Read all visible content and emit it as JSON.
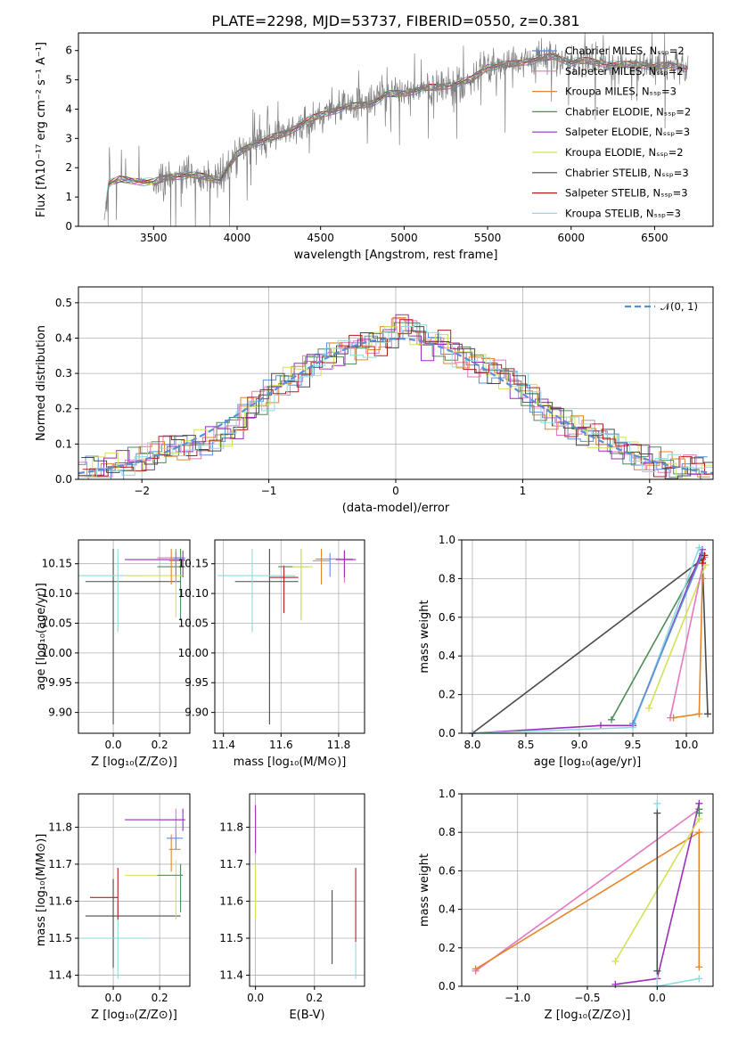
{
  "figure": {
    "title": "PLATE=2298, MJD=53737, FIBERID=0550, z=0.381"
  },
  "chart_data": [
    {
      "id": "spectrum",
      "type": "line",
      "xlabel": "wavelength [Angstrom, rest frame]",
      "ylabel": "Flux [fλ10⁻¹⁷ erg cm⁻² s⁻¹ A⁻¹]",
      "xlim": [
        3050,
        6850
      ],
      "ylim": [
        0,
        6.6
      ],
      "xticks": [
        3500,
        4000,
        4500,
        5000,
        5500,
        6000,
        6500
      ],
      "yticks": [
        0,
        1,
        2,
        3,
        4,
        5,
        6
      ],
      "grid": false,
      "legend_position": "top-right",
      "data_color": "#7f7f7f",
      "continuum": {
        "x": [
          3200,
          3230,
          3300,
          3400,
          3500,
          3600,
          3700,
          3800,
          3900,
          4000,
          4100,
          4200,
          4300,
          4400,
          4500,
          4600,
          4700,
          4800,
          4900,
          5000,
          5100,
          5200,
          5300,
          5400,
          5500,
          5600,
          5700,
          5800,
          5900,
          6000,
          6100,
          6200,
          6300,
          6400,
          6500,
          6600,
          6700
        ],
        "y": [
          0,
          1.45,
          1.6,
          1.55,
          1.5,
          1.7,
          1.75,
          1.7,
          1.6,
          2.45,
          2.85,
          3.0,
          3.2,
          3.55,
          3.8,
          4.0,
          4.1,
          4.2,
          4.5,
          4.55,
          4.7,
          4.75,
          4.85,
          5.0,
          5.45,
          5.5,
          5.6,
          5.7,
          5.8,
          5.6,
          5.65,
          5.55,
          5.5,
          5.55,
          5.45,
          5.5,
          5.4
        ]
      },
      "series": [
        {
          "name": "Chabrier MILES, Nₛₛₚ=2",
          "color": "#5a8fd8"
        },
        {
          "name": "Salpeter MILES, Nₛₛₚ=2",
          "color": "#e377c2"
        },
        {
          "name": "Kroupa MILES, Nₛₛₚ=3",
          "color": "#e3862c"
        },
        {
          "name": "Chabrier ELODIE, Nₛₛₚ=2",
          "color": "#4f8a5a"
        },
        {
          "name": "Salpeter ELODIE, Nₛₛₚ=3",
          "color": "#9a2fb8"
        },
        {
          "name": "Kroupa ELODIE, Nₛₛₚ=2",
          "color": "#d4e157"
        },
        {
          "name": "Chabrier STELIB, Nₛₛₚ=3",
          "color": "#4a4a4a"
        },
        {
          "name": "Salpeter STELIB, Nₛₛₚ=3",
          "color": "#b71c1c"
        },
        {
          "name": "Kroupa STELIB, Nₛₛₚ=3",
          "color": "#8fd9dd"
        }
      ]
    },
    {
      "id": "residuals",
      "type": "histogram",
      "xlabel": "(data-model)/error",
      "ylabel": "Normed distribution",
      "xlim": [
        -2.5,
        2.5
      ],
      "ylim": [
        0,
        0.545
      ],
      "xticks": [
        -2,
        -1,
        0,
        1,
        2
      ],
      "yticks": [
        0.0,
        0.1,
        0.2,
        0.3,
        0.4,
        0.5
      ],
      "grid": true,
      "legend_position": "top-right",
      "reference": {
        "name": "𝒩(0, 1)",
        "color": "#5a8fd8",
        "style": "dashed"
      },
      "bin_centers": [
        -2.45,
        -2.35,
        -2.25,
        -2.15,
        -2.05,
        -1.95,
        -1.85,
        -1.75,
        -1.65,
        -1.55,
        -1.45,
        -1.35,
        -1.25,
        -1.15,
        -1.05,
        -0.95,
        -0.85,
        -0.75,
        -0.65,
        -0.55,
        -0.45,
        -0.35,
        -0.25,
        -0.15,
        -0.05,
        0.05,
        0.15,
        0.25,
        0.35,
        0.45,
        0.55,
        0.65,
        0.75,
        0.85,
        0.95,
        1.05,
        1.15,
        1.25,
        1.35,
        1.45,
        1.55,
        1.65,
        1.75,
        1.85,
        1.95,
        2.05,
        2.15,
        2.25,
        2.35,
        2.45
      ],
      "bin_values": [
        0.02,
        0.03,
        0.04,
        0.04,
        0.05,
        0.06,
        0.08,
        0.09,
        0.09,
        0.1,
        0.11,
        0.13,
        0.15,
        0.2,
        0.22,
        0.26,
        0.28,
        0.3,
        0.33,
        0.34,
        0.36,
        0.37,
        0.38,
        0.39,
        0.41,
        0.44,
        0.42,
        0.38,
        0.39,
        0.36,
        0.35,
        0.33,
        0.31,
        0.3,
        0.27,
        0.24,
        0.2,
        0.18,
        0.16,
        0.14,
        0.13,
        0.11,
        0.09,
        0.08,
        0.06,
        0.05,
        0.04,
        0.03,
        0.03,
        0.02
      ]
    },
    {
      "id": "age-vs-Z",
      "type": "errorbar",
      "xlabel": "Z [log₁₀(Z/Z⊙)]",
      "ylabel": "age  [log₁₀(age/yr)]",
      "xlim": [
        -0.15,
        0.33
      ],
      "ylim": [
        9.865,
        10.19
      ],
      "xticks": [
        0.0,
        0.2
      ],
      "yticks": [
        9.9,
        9.95,
        10.0,
        10.05,
        10.1,
        10.15
      ],
      "grid": true
    },
    {
      "id": "age-vs-mass",
      "type": "errorbar",
      "xlabel": "mass [log₁₀(M/M⊙)]",
      "ylabel": "",
      "xlim": [
        11.37,
        11.89
      ],
      "ylim": [
        9.865,
        10.19
      ],
      "xticks": [
        11.4,
        11.6,
        11.8
      ],
      "yticks": [
        9.9,
        9.95,
        10.0,
        10.05,
        10.1,
        10.15
      ],
      "grid": true
    },
    {
      "id": "weight-vs-age",
      "type": "line",
      "xlabel": "age  [log₁₀(age/yr)]",
      "ylabel": "mass weight",
      "xlim": [
        7.9,
        10.25
      ],
      "ylim": [
        0,
        1.0
      ],
      "xticks": [
        8.0,
        8.5,
        9.0,
        9.5,
        10.0
      ],
      "yticks": [
        0.0,
        0.2,
        0.4,
        0.6,
        0.8,
        1.0
      ],
      "grid": true,
      "series": [
        {
          "color": "#4a4a4a",
          "x": [
            8.0,
            10.15,
            10.2
          ],
          "y": [
            0.0,
            0.9,
            0.1
          ]
        },
        {
          "color": "#4f8a5a",
          "x": [
            9.3,
            10.15
          ],
          "y": [
            0.07,
            0.92
          ]
        },
        {
          "color": "#9a2fb8",
          "x": [
            8.0,
            9.2,
            9.5,
            10.15
          ],
          "y": [
            0.0,
            0.04,
            0.04,
            0.95
          ]
        },
        {
          "color": "#8fd9dd",
          "x": [
            8.0,
            9.5,
            10.12
          ],
          "y": [
            0.0,
            0.03,
            0.96
          ]
        },
        {
          "color": "#5a8fd8",
          "x": [
            9.5,
            10.15
          ],
          "y": [
            0.05,
            0.93
          ]
        },
        {
          "color": "#d4e157",
          "x": [
            9.65,
            10.18
          ],
          "y": [
            0.13,
            0.87
          ]
        },
        {
          "color": "#e377c2",
          "x": [
            9.85,
            10.17
          ],
          "y": [
            0.08,
            0.91
          ]
        },
        {
          "color": "#e3862c",
          "x": [
            9.88,
            10.12,
            10.15
          ],
          "y": [
            0.08,
            0.1,
            0.8
          ]
        },
        {
          "color": "#b71c1c",
          "x": [
            10.15,
            10.17
          ],
          "y": [
            0.88,
            0.92
          ]
        }
      ]
    },
    {
      "id": "mass-vs-Z",
      "type": "errorbar",
      "xlabel": "Z [log₁₀(Z/Z⊙)]",
      "ylabel": "mass [log₁₀(M/M⊙)]",
      "xlim": [
        -0.15,
        0.33
      ],
      "ylim": [
        11.37,
        11.89
      ],
      "xticks": [
        0.0,
        0.2
      ],
      "yticks": [
        11.4,
        11.5,
        11.6,
        11.7,
        11.8
      ],
      "grid": true
    },
    {
      "id": "mass-vs-EBV",
      "type": "errorbar",
      "xlabel": "E(B-V)",
      "ylabel": "",
      "xlim": [
        -0.02,
        0.37
      ],
      "ylim": [
        11.37,
        11.89
      ],
      "xticks": [
        0.0,
        0.2
      ],
      "yticks": [
        11.4,
        11.5,
        11.6,
        11.7,
        11.8
      ],
      "grid": true
    },
    {
      "id": "weight-vs-Z",
      "type": "line",
      "xlabel": "Z [log₁₀(Z/Z⊙)]",
      "ylabel": "mass weight",
      "xlim": [
        -1.4,
        0.4
      ],
      "ylim": [
        0,
        1.0
      ],
      "xticks": [
        -1.0,
        -0.5,
        0.0
      ],
      "yticks": [
        0.0,
        0.2,
        0.4,
        0.6,
        0.8,
        1.0
      ],
      "grid": true,
      "series": [
        {
          "color": "#e377c2",
          "x": [
            -1.3,
            0.3
          ],
          "y": [
            0.08,
            0.92
          ]
        },
        {
          "color": "#e3862c",
          "x": [
            -1.3,
            0.3,
            0.3
          ],
          "y": [
            0.09,
            0.8,
            0.1
          ]
        },
        {
          "color": "#9a2fb8",
          "x": [
            -0.3,
            0.0,
            0.3
          ],
          "y": [
            0.01,
            0.04,
            0.95
          ]
        },
        {
          "color": "#d4e157",
          "x": [
            -0.3,
            0.3
          ],
          "y": [
            0.13,
            0.87
          ]
        },
        {
          "color": "#8fd9dd",
          "x": [
            0.0,
            0.0,
            0.3
          ],
          "y": [
            0.95,
            0.0,
            0.04
          ]
        },
        {
          "color": "#4a4a4a",
          "x": [
            0.0,
            0.0
          ],
          "y": [
            0.9,
            0.08
          ]
        },
        {
          "color": "#4f8a5a",
          "x": [
            0.3,
            0.3
          ],
          "y": [
            0.92,
            0.9
          ]
        }
      ]
    }
  ]
}
